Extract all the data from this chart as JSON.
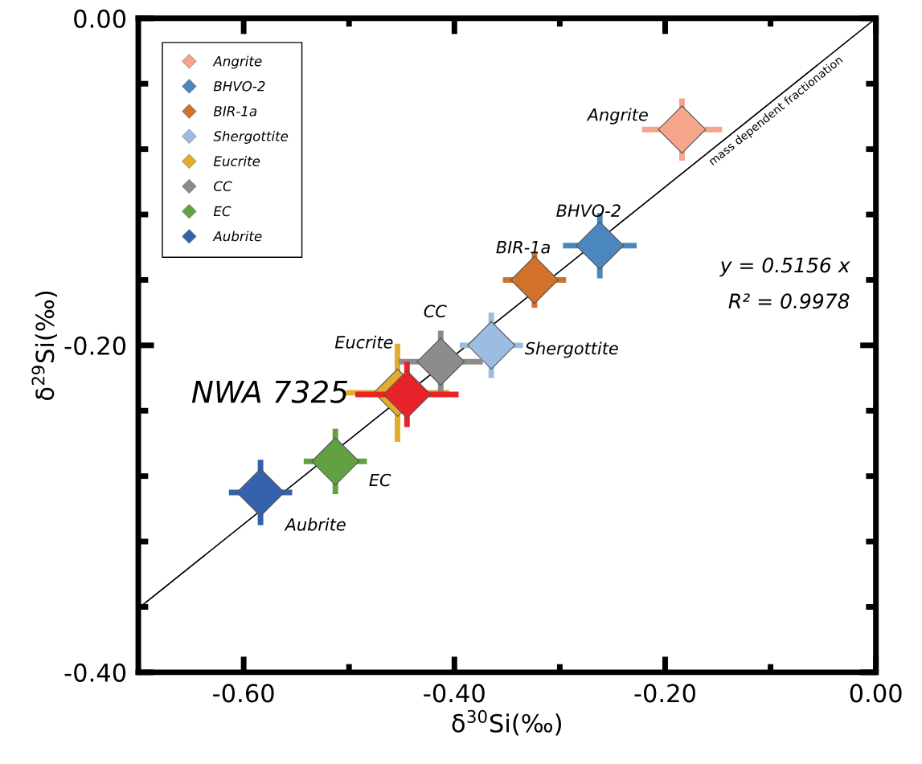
{
  "chart_data": {
    "type": "scatter",
    "xlabel": "δ$^{30}$Si(‰)",
    "ylabel": "δ$^{29}$Si(‰)",
    "xlim": [
      -0.7,
      0.0
    ],
    "ylim": [
      -0.4,
      0.0
    ],
    "xticks": [
      {
        "value": -0.6,
        "label": "-0.60"
      },
      {
        "value": -0.5,
        "label": null
      },
      {
        "value": -0.4,
        "label": "-0.40"
      },
      {
        "value": -0.3,
        "label": null
      },
      {
        "value": -0.2,
        "label": "-0.20"
      },
      {
        "value": -0.1,
        "label": null
      },
      {
        "value": 0.0,
        "label": "0.00"
      }
    ],
    "yticks": [
      {
        "value": 0.0,
        "label": "0.00"
      },
      {
        "value": -0.04,
        "label": null
      },
      {
        "value": -0.08,
        "label": null
      },
      {
        "value": -0.12,
        "label": null
      },
      {
        "value": -0.16,
        "label": null
      },
      {
        "value": -0.2,
        "label": "-0.20"
      },
      {
        "value": -0.24,
        "label": null
      },
      {
        "value": -0.28,
        "label": null
      },
      {
        "value": -0.32,
        "label": null
      },
      {
        "value": -0.36,
        "label": null
      },
      {
        "value": -0.4,
        "label": "-0.40"
      }
    ],
    "marker": "diamond",
    "grid": false,
    "legend": "top left",
    "series": [
      {
        "name": "Angrite",
        "color": "#f4a58a",
        "x": [
          -0.184
        ],
        "values": [
          -0.068
        ],
        "errors": [
          0.019
        ],
        "xerrors": [
          0.038
        ]
      },
      {
        "name": "BHVO-2",
        "color": "#4a87bf",
        "x": [
          -0.262
        ],
        "values": [
          -0.139
        ],
        "errors": [
          0.02
        ],
        "xerrors": [
          0.035
        ]
      },
      {
        "name": "BIR-1a",
        "color": "#d2712a",
        "x": [
          -0.324
        ],
        "values": [
          -0.16
        ],
        "errors": [
          0.017
        ],
        "xerrors": [
          0.03
        ]
      },
      {
        "name": "Shergottite",
        "color": "#9bbde2",
        "x": [
          -0.365
        ],
        "values": [
          -0.2
        ],
        "errors": [
          0.02
        ],
        "xerrors": [
          0.03
        ]
      },
      {
        "name": "Eucrite",
        "color": "#e3ac2b",
        "x": [
          -0.454
        ],
        "values": [
          -0.229
        ],
        "errors": [
          0.03
        ],
        "xerrors": [
          0.049
        ]
      },
      {
        "name": "CC",
        "color": "#8c8c8c",
        "x": [
          -0.413
        ],
        "values": [
          -0.21
        ],
        "errors": [
          0.019
        ],
        "xerrors": [
          0.04
        ]
      },
      {
        "name": "EC",
        "color": "#62a044",
        "x": [
          -0.513
        ],
        "values": [
          -0.271
        ],
        "errors": [
          0.02
        ],
        "xerrors": [
          0.03
        ]
      },
      {
        "name": "Aubrite",
        "color": "#3462ad",
        "x": [
          -0.584
        ],
        "values": [
          -0.29
        ],
        "errors": [
          0.02
        ],
        "xerrors": [
          0.03
        ]
      },
      {
        "color": "#e8222a",
        "x": [
          -0.445
        ],
        "values": [
          -0.23
        ],
        "errors": [
          0.02
        ],
        "xerrors": [
          0.049
        ]
      },
      {
        "type": "line",
        "marker": "none",
        "color": "#000000",
        "x": [
          -0.7,
          0.0
        ],
        "values": [
          -0.3609,
          0.0
        ]
      }
    ],
    "annotations": [
      {
        "text": "NWA 7325",
        "x": -0.445,
        "y": -0.23
      },
      {
        "text": "mass dependent fractionation",
        "x": -0.1,
        "y": -0.052
      },
      "y = 0.5156 x",
      "R² = 0.9978"
    ]
  }
}
